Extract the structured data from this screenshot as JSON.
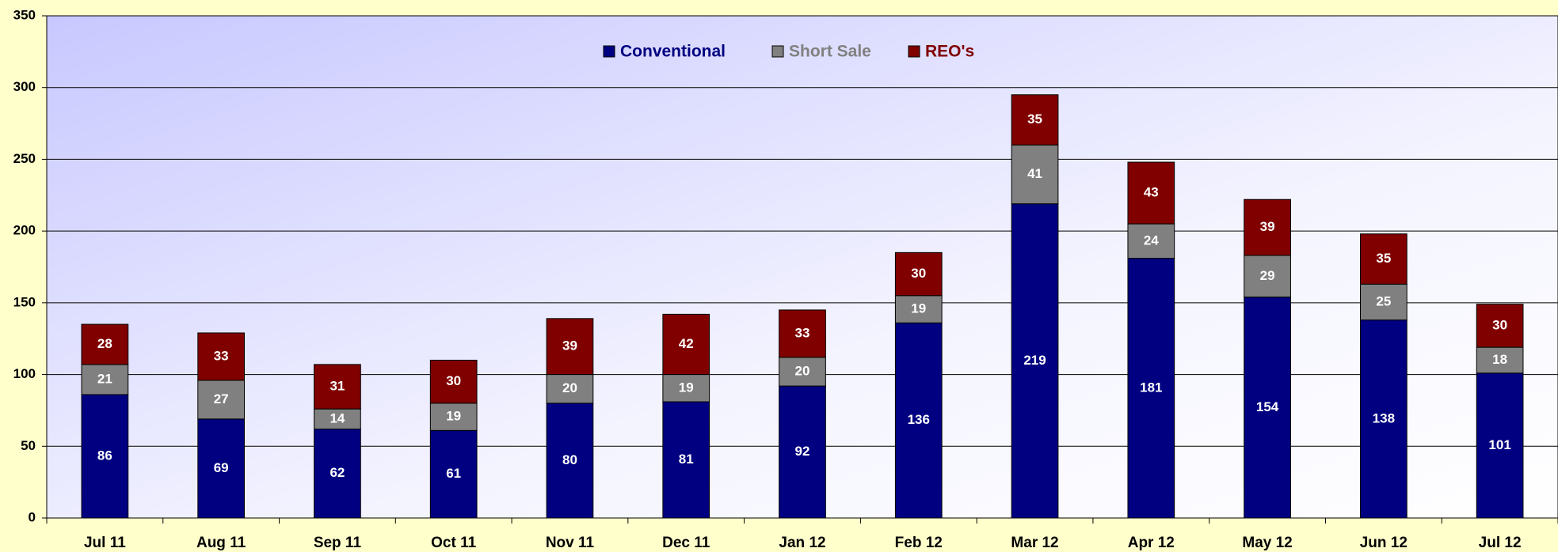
{
  "chart_data": {
    "type": "stacked_bar",
    "categories": [
      "Jul 11",
      "Aug 11",
      "Sep 11",
      "Oct 11",
      "Nov 11",
      "Dec 11",
      "Jan 12",
      "Feb 12",
      "Mar 12",
      "Apr 12",
      "May 12",
      "Jun 12",
      "Jul 12"
    ],
    "series": [
      {
        "name": "Conventional",
        "color": "#000080",
        "values": [
          86,
          69,
          62,
          61,
          80,
          81,
          92,
          136,
          219,
          181,
          154,
          138,
          101
        ]
      },
      {
        "name": "Short Sale",
        "color": "#808080",
        "values": [
          21,
          27,
          14,
          19,
          20,
          19,
          20,
          19,
          41,
          24,
          29,
          25,
          18
        ]
      },
      {
        "name": "REO's",
        "color": "#800000",
        "values": [
          28,
          33,
          31,
          30,
          39,
          42,
          33,
          30,
          35,
          43,
          39,
          35,
          30
        ]
      }
    ],
    "ylim": [
      0,
      350
    ],
    "yticks": [
      0,
      50,
      100,
      150,
      200,
      250,
      300,
      350
    ],
    "grid": true,
    "legend": "top"
  }
}
